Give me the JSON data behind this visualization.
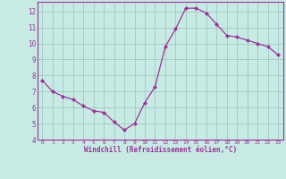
{
  "x": [
    0,
    1,
    2,
    3,
    4,
    5,
    6,
    7,
    8,
    9,
    10,
    11,
    12,
    13,
    14,
    15,
    16,
    17,
    18,
    19,
    20,
    21,
    22,
    23
  ],
  "y": [
    7.7,
    7.0,
    6.7,
    6.5,
    6.1,
    5.8,
    5.7,
    5.1,
    4.6,
    5.0,
    6.3,
    7.3,
    9.8,
    10.9,
    12.2,
    12.2,
    11.9,
    11.2,
    10.5,
    10.4,
    10.2,
    10.0,
    9.8,
    9.3
  ],
  "line_color": "#993399",
  "marker": "D",
  "marker_size": 2.0,
  "bg_color": "#c8eae4",
  "grid_color": "#a0c8c0",
  "xlabel": "Windchill (Refroidissement éolien,°C)",
  "xlabel_color": "#993399",
  "tick_color": "#993399",
  "spine_color": "#993399",
  "xlim": [
    -0.5,
    23.5
  ],
  "ylim": [
    4,
    12.6
  ],
  "yticks": [
    4,
    5,
    6,
    7,
    8,
    9,
    10,
    11,
    12
  ],
  "xticks": [
    0,
    1,
    2,
    3,
    4,
    5,
    6,
    7,
    8,
    9,
    10,
    11,
    12,
    13,
    14,
    15,
    16,
    17,
    18,
    19,
    20,
    21,
    22,
    23
  ]
}
